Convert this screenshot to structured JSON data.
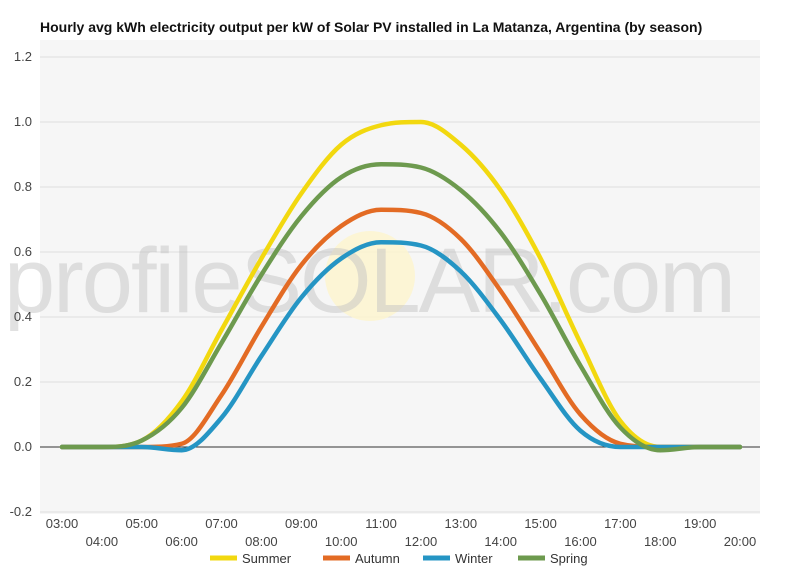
{
  "chart_data": {
    "type": "line",
    "title": "Hourly avg kWh electricity output per kW of Solar PV installed in La Matanza, Argentina (by season)",
    "xlabel": "",
    "ylabel": "",
    "watermark": "profileSOLAR.com",
    "x": [
      "03:00",
      "04:00",
      "05:00",
      "06:00",
      "07:00",
      "08:00",
      "09:00",
      "10:00",
      "11:00",
      "12:00",
      "13:00",
      "14:00",
      "15:00",
      "16:00",
      "17:00",
      "18:00",
      "19:00",
      "20:00"
    ],
    "ylim": [
      -0.2,
      1.2
    ],
    "yticks": [
      "-0.2",
      "0.0",
      "0.2",
      "0.4",
      "0.6",
      "0.8",
      "1.0",
      "1.2"
    ],
    "grid": true,
    "legend_position": "bottom",
    "series": [
      {
        "name": "Summer",
        "color": "#f2d80f",
        "values": [
          0,
          0,
          0.02,
          0.14,
          0.36,
          0.58,
          0.78,
          0.93,
          0.99,
          1.0,
          0.93,
          0.79,
          0.58,
          0.32,
          0.08,
          0,
          0,
          0
        ]
      },
      {
        "name": "Autumn",
        "color": "#e36b24",
        "values": [
          0,
          0,
          0,
          0.01,
          0.16,
          0.37,
          0.56,
          0.68,
          0.73,
          0.72,
          0.64,
          0.48,
          0.29,
          0.1,
          0.01,
          0,
          0,
          0
        ]
      },
      {
        "name": "Winter",
        "color": "#2595c4",
        "values": [
          0,
          0,
          0,
          -0.01,
          0.09,
          0.28,
          0.46,
          0.58,
          0.63,
          0.62,
          0.54,
          0.39,
          0.21,
          0.05,
          0,
          0,
          0,
          0
        ]
      },
      {
        "name": "Spring",
        "color": "#6d9a4e",
        "values": [
          0,
          0,
          0.02,
          0.12,
          0.32,
          0.53,
          0.71,
          0.83,
          0.87,
          0.86,
          0.79,
          0.66,
          0.47,
          0.25,
          0.06,
          -0.01,
          0,
          0
        ]
      }
    ]
  }
}
